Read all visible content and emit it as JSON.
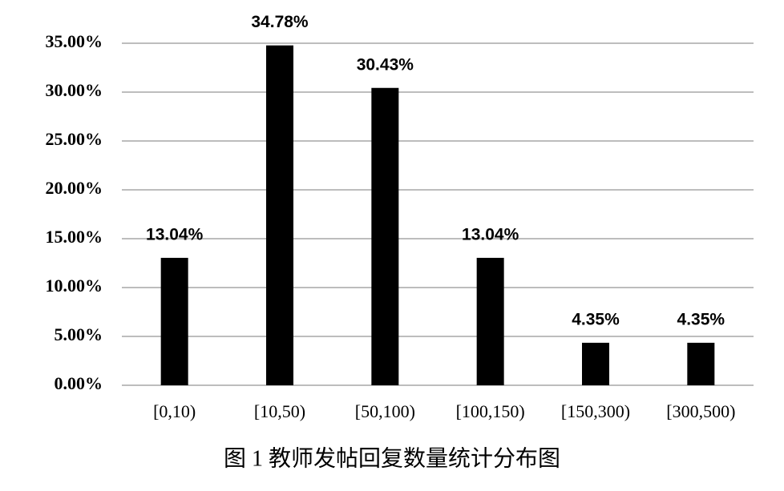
{
  "chart_data": {
    "type": "bar",
    "title": "图 1 教师发帖回复数量统计分布图",
    "categories": [
      "[0,10)",
      "[10,50)",
      "[50,100)",
      "[100,150)",
      "[150,300)",
      "[300,500)"
    ],
    "values": [
      13.04,
      34.78,
      30.43,
      13.04,
      4.35,
      4.35
    ],
    "value_labels": [
      "13.04%",
      "34.78%",
      "30.43%",
      "13.04%",
      "4.35%",
      "4.35%"
    ],
    "color": "#000000",
    "ylim": [
      0,
      35
    ],
    "yticks": [
      {
        "value": 0,
        "label": "0.00%"
      },
      {
        "value": 5,
        "label": "5.00%"
      },
      {
        "value": 10,
        "label": "10.00%"
      },
      {
        "value": 15,
        "label": "15.00%"
      },
      {
        "value": 20,
        "label": "20.00%"
      },
      {
        "value": 25,
        "label": "25.00%"
      },
      {
        "value": 30,
        "label": "30.00%"
      },
      {
        "value": 35,
        "label": "35.00%"
      }
    ],
    "grid": true
  }
}
